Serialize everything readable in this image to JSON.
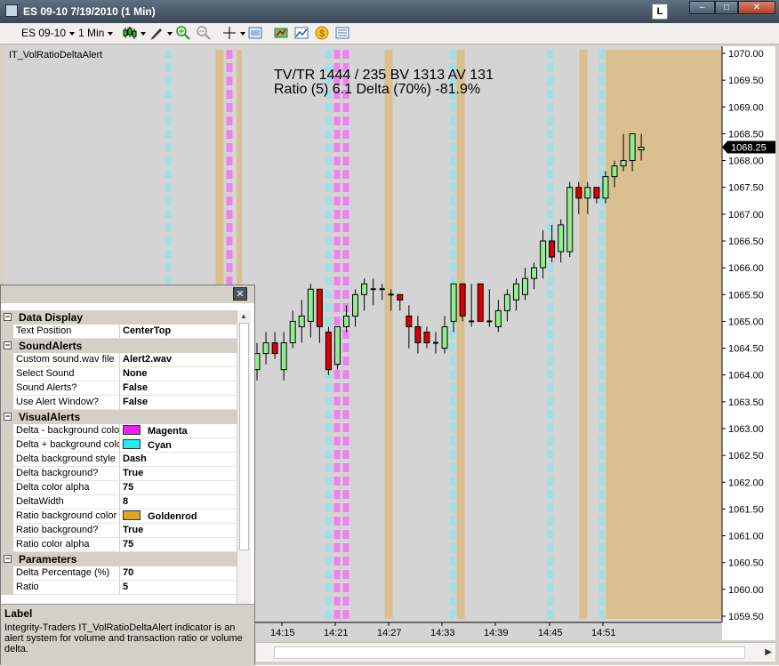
{
  "window": {
    "title": "ES 09-10  7/19/2010 (1 Min)",
    "l_button": "L",
    "min_glyph": "–",
    "max_glyph": "□",
    "close_glyph": "✕"
  },
  "toolbar": {
    "instrument": "ES 09-10",
    "interval": "1 Min",
    "icons": [
      "chart-style-icon",
      "draw-tool-icon",
      "zoom-in-icon",
      "zoom-out-icon",
      "crosshair-icon",
      "properties-icon",
      "strategy-icon",
      "indicators-icon",
      "gold-coin-icon",
      "data-box-icon"
    ]
  },
  "chart": {
    "indicator_name": "IT_VolRatioDeltaAlert",
    "info_line1": "TV/TR 1444 / 235  BV 1313  AV 131",
    "info_line2": "Ratio (5)  6.1  Delta (70%)  -81.9%",
    "current_price": "1068.25",
    "price_labels": [
      "1070.00",
      "1069.50",
      "1069.00",
      "1068.50",
      "1068.00",
      "1067.50",
      "1067.00",
      "1066.50",
      "1066.00",
      "1065.50",
      "1065.00",
      "1064.50",
      "1064.00",
      "1063.50",
      "1063.00",
      "1062.50",
      "1062.00",
      "1061.50",
      "1061.00",
      "1060.50",
      "1060.00",
      "1059.50"
    ],
    "time_labels": [
      "14:15",
      "14:21",
      "14:27",
      "14:33",
      "14:39",
      "14:45",
      "14:51"
    ],
    "colors": {
      "background": "#d4d4d4",
      "magenta": "#ee82ee",
      "cyan": "#9fe0e6",
      "goldenrod": "#d9c08e",
      "up_candle": "#90ee90",
      "down_candle": "#dd0000"
    }
  },
  "properties": {
    "close_glyph": "✕",
    "rows": [
      {
        "type": "cat",
        "label": "Data Display"
      },
      {
        "type": "prop",
        "name": "Text Position",
        "value": "CenterTop"
      },
      {
        "type": "cat",
        "label": "SoundAlerts"
      },
      {
        "type": "prop",
        "name": "Custom sound.wav file",
        "value": "Alert2.wav"
      },
      {
        "type": "prop",
        "name": "Select Sound",
        "value": "None"
      },
      {
        "type": "prop",
        "name": "Sound Alerts?",
        "value": "False"
      },
      {
        "type": "prop",
        "name": "Use Alert Window?",
        "value": "False"
      },
      {
        "type": "cat",
        "label": "VisualAlerts"
      },
      {
        "type": "prop",
        "name": "Delta - background color",
        "value": "Magenta",
        "color": "#ee22ee"
      },
      {
        "type": "prop",
        "name": "Delta + background color",
        "value": "Cyan",
        "color": "#22eeee"
      },
      {
        "type": "prop",
        "name": "Delta background style",
        "value": "Dash"
      },
      {
        "type": "prop",
        "name": "Delta background?",
        "value": "True"
      },
      {
        "type": "prop",
        "name": "Delta color alpha",
        "value": "75"
      },
      {
        "type": "prop",
        "name": "DeltaWidth",
        "value": "8"
      },
      {
        "type": "prop",
        "name": "Ratio background color",
        "value": "Goldenrod",
        "color": "#daa520"
      },
      {
        "type": "prop",
        "name": "Ratio background?",
        "value": "True"
      },
      {
        "type": "prop",
        "name": "Ratio color alpha",
        "value": "75"
      },
      {
        "type": "cat",
        "label": "Parameters"
      },
      {
        "type": "prop",
        "name": "Delta Percentage (%)",
        "value": "70"
      },
      {
        "type": "prop",
        "name": "Ratio",
        "value": "5"
      }
    ],
    "description_title": "Label",
    "description_text": "Integrity-Traders IT_VolRatioDeltaAlert indicator is an alert system for volume and transaction ratio or volume delta."
  },
  "candles": [
    {
      "o": 1063.6,
      "h": 1064.1,
      "l": 1063.3,
      "c": 1064.1
    },
    {
      "o": 1064.0,
      "h": 1064.4,
      "l": 1063.7,
      "c": 1064.2
    },
    {
      "o": 1064.1,
      "h": 1064.6,
      "l": 1063.9,
      "c": 1064.4
    },
    {
      "o": 1064.4,
      "h": 1064.8,
      "l": 1064.2,
      "c": 1064.6
    },
    {
      "o": 1064.6,
      "h": 1064.8,
      "l": 1064.3,
      "c": 1064.4
    },
    {
      "o": 1064.1,
      "h": 1064.8,
      "l": 1063.9,
      "c": 1064.6
    },
    {
      "o": 1064.6,
      "h": 1065.2,
      "l": 1064.5,
      "c": 1065.0
    },
    {
      "o": 1064.9,
      "h": 1065.4,
      "l": 1064.6,
      "c": 1065.1
    },
    {
      "o": 1065.0,
      "h": 1065.7,
      "l": 1064.7,
      "c": 1065.6
    },
    {
      "o": 1065.6,
      "h": 1065.6,
      "l": 1064.6,
      "c": 1064.9
    },
    {
      "o": 1064.8,
      "h": 1064.9,
      "l": 1064.0,
      "c": 1064.1
    },
    {
      "o": 1064.2,
      "h": 1064.9,
      "l": 1064.1,
      "c": 1064.9
    },
    {
      "o": 1064.9,
      "h": 1065.3,
      "l": 1064.8,
      "c": 1065.1
    },
    {
      "o": 1065.1,
      "h": 1065.6,
      "l": 1064.9,
      "c": 1065.5
    },
    {
      "o": 1065.5,
      "h": 1065.8,
      "l": 1065.2,
      "c": 1065.7
    },
    {
      "o": 1065.6,
      "h": 1065.8,
      "l": 1065.3,
      "c": 1065.6
    },
    {
      "o": 1065.6,
      "h": 1065.7,
      "l": 1065.4,
      "c": 1065.6
    },
    {
      "o": 1065.5,
      "h": 1065.6,
      "l": 1065.2,
      "c": 1065.5
    },
    {
      "o": 1065.5,
      "h": 1065.5,
      "l": 1065.2,
      "c": 1065.4
    },
    {
      "o": 1065.1,
      "h": 1065.3,
      "l": 1064.5,
      "c": 1064.9
    },
    {
      "o": 1064.9,
      "h": 1065.1,
      "l": 1064.4,
      "c": 1064.6
    },
    {
      "o": 1064.8,
      "h": 1064.9,
      "l": 1064.5,
      "c": 1064.6
    },
    {
      "o": 1064.6,
      "h": 1064.8,
      "l": 1064.4,
      "c": 1064.6
    },
    {
      "o": 1064.5,
      "h": 1065.1,
      "l": 1064.4,
      "c": 1064.9
    },
    {
      "o": 1065.0,
      "h": 1065.7,
      "l": 1064.8,
      "c": 1065.7
    },
    {
      "o": 1065.7,
      "h": 1065.7,
      "l": 1065.0,
      "c": 1065.1
    },
    {
      "o": 1065.0,
      "h": 1065.7,
      "l": 1064.9,
      "c": 1065.0
    },
    {
      "o": 1065.7,
      "h": 1065.7,
      "l": 1065.0,
      "c": 1065.0
    },
    {
      "o": 1065.0,
      "h": 1065.6,
      "l": 1064.9,
      "c": 1065.0
    },
    {
      "o": 1064.9,
      "h": 1065.4,
      "l": 1064.8,
      "c": 1065.2
    },
    {
      "o": 1065.2,
      "h": 1065.6,
      "l": 1065.0,
      "c": 1065.5
    },
    {
      "o": 1065.4,
      "h": 1065.8,
      "l": 1065.2,
      "c": 1065.7
    },
    {
      "o": 1065.5,
      "h": 1066.0,
      "l": 1065.4,
      "c": 1065.8
    },
    {
      "o": 1065.8,
      "h": 1066.1,
      "l": 1065.6,
      "c": 1066.0
    },
    {
      "o": 1066.0,
      "h": 1066.7,
      "l": 1065.8,
      "c": 1066.5
    },
    {
      "o": 1066.5,
      "h": 1066.8,
      "l": 1066.1,
      "c": 1066.2
    },
    {
      "o": 1066.3,
      "h": 1066.9,
      "l": 1066.1,
      "c": 1066.8
    },
    {
      "o": 1066.3,
      "h": 1067.6,
      "l": 1066.2,
      "c": 1067.5
    },
    {
      "o": 1067.5,
      "h": 1067.6,
      "l": 1067.0,
      "c": 1067.3
    },
    {
      "o": 1067.3,
      "h": 1067.6,
      "l": 1067.0,
      "c": 1067.5
    },
    {
      "o": 1067.5,
      "h": 1067.5,
      "l": 1067.2,
      "c": 1067.3
    },
    {
      "o": 1067.3,
      "h": 1067.8,
      "l": 1067.2,
      "c": 1067.7
    },
    {
      "o": 1067.7,
      "h": 1068.0,
      "l": 1067.5,
      "c": 1067.9
    },
    {
      "o": 1067.9,
      "h": 1068.5,
      "l": 1067.8,
      "c": 1068.0
    },
    {
      "o": 1068.0,
      "h": 1068.5,
      "l": 1067.8,
      "c": 1068.5
    },
    {
      "o": 1068.2,
      "h": 1068.5,
      "l": 1068.0,
      "c": 1068.25
    }
  ]
}
